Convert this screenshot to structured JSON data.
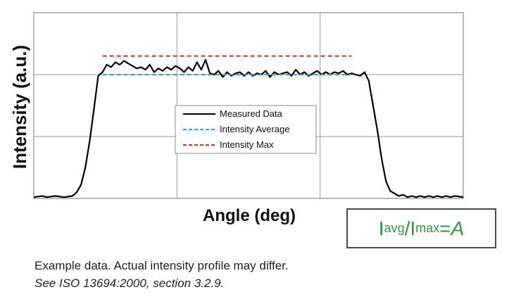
{
  "chart_data": {
    "type": "line",
    "xlabel": "Angle (deg)",
    "ylabel": "Intensity (a.u.)",
    "xlim": [
      0,
      100
    ],
    "ylim": [
      0,
      1.5
    ],
    "grid": true,
    "legend_position": "center",
    "series": [
      {
        "name": "Measured Data",
        "color": "#000000",
        "style": "solid",
        "x": [
          0,
          2,
          3,
          5,
          7,
          9,
          10,
          11,
          12,
          13,
          14,
          15,
          16,
          17,
          18,
          19,
          20,
          21,
          22,
          23,
          24,
          25,
          26,
          27,
          28,
          29,
          30,
          31,
          32,
          33,
          34,
          35,
          36,
          37,
          38,
          39,
          40,
          41,
          42,
          43,
          44,
          45,
          46,
          47,
          48,
          49,
          50,
          51,
          52,
          53,
          54,
          55,
          56,
          57,
          58,
          59,
          60,
          61,
          62,
          63,
          64,
          65,
          66,
          67,
          68,
          69,
          70,
          71,
          72,
          73,
          74,
          75,
          76,
          77,
          78,
          79,
          80,
          81,
          82,
          83,
          84,
          85,
          86,
          87,
          88,
          89,
          90,
          91,
          92,
          93,
          94,
          95,
          96,
          97,
          98,
          100
        ],
        "y": [
          0.01,
          0.02,
          0.01,
          0.02,
          0.01,
          0.02,
          0.05,
          0.11,
          0.25,
          0.46,
          0.72,
          0.99,
          1.02,
          1.08,
          1.06,
          1.1,
          1.08,
          1.11,
          1.09,
          1.07,
          1.05,
          1.06,
          1.04,
          1.08,
          1.02,
          1.05,
          1.03,
          1.06,
          1.04,
          1.07,
          1.05,
          1.02,
          1.06,
          1.03,
          1.1,
          1.04,
          1.12,
          1.01,
          1.0,
          1.03,
          0.98,
          1.02,
          0.99,
          1.01,
          1.02,
          0.99,
          1.02,
          0.99,
          1.01,
          1.0,
          1.03,
          0.98,
          1.02,
          1.0,
          1.01,
          1.02,
          0.99,
          1.04,
          1.0,
          1.02,
          0.99,
          1.01,
          1.03,
          1.0,
          1.02,
          1.0,
          1.02,
          1.01,
          1.03,
          1.0,
          1.01,
          1.0,
          0.99,
          1.02,
          0.95,
          0.75,
          0.55,
          0.32,
          0.14,
          0.06,
          0.04,
          0.02,
          0.03,
          0.01,
          0.02,
          0.01,
          0.02,
          0.01,
          0.02,
          0.01,
          0.02,
          0.01,
          0.02,
          0.01,
          0.02,
          0.01
        ]
      },
      {
        "name": "Intensity Average",
        "color": "#2aa4dc",
        "style": "dashed",
        "x": [
          16,
          74
        ],
        "y": [
          1.0,
          1.0
        ]
      },
      {
        "name": "Intensity Max",
        "color": "#c0392b",
        "style": "dashed",
        "x": [
          16,
          74
        ],
        "y": [
          1.15,
          1.15
        ]
      }
    ]
  },
  "formula": {
    "i1": "I",
    "sub1": "avg",
    "slash": " /I",
    "sub2": " max",
    "equals": " = ",
    "rhs": "A"
  },
  "caption": {
    "line1": "Example data. Actual intensity profile may differ.",
    "line2": "See ISO 13694:2000, section 3.2.9."
  }
}
